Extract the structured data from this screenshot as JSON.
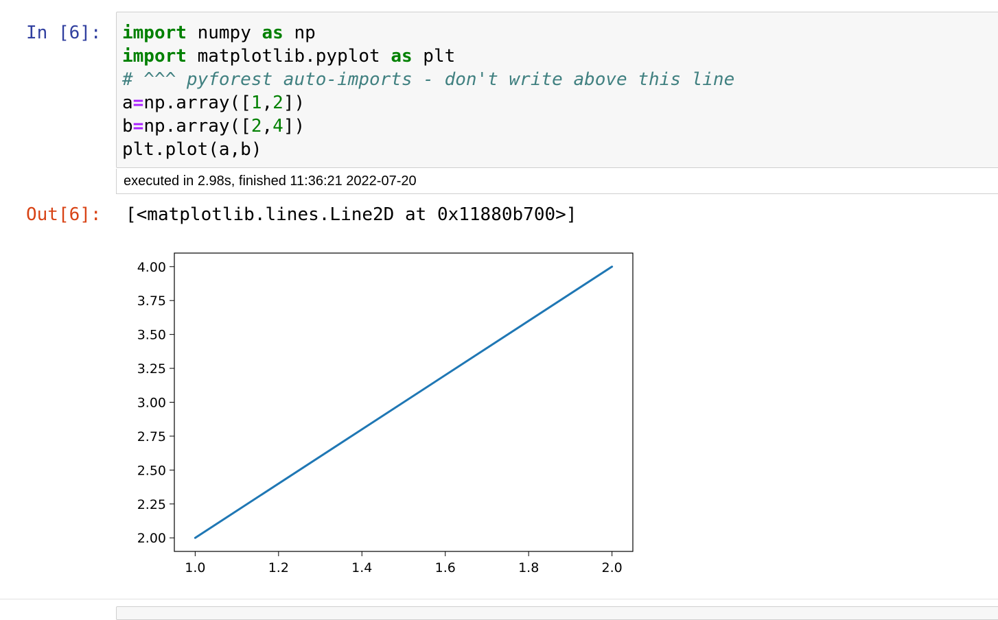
{
  "cell": {
    "in_prompt": "In [6]:",
    "out_prompt": "Out[6]:",
    "code_lines": [
      [
        {
          "t": "import",
          "c": "kw"
        },
        {
          "t": " numpy "
        },
        {
          "t": "as",
          "c": "kw"
        },
        {
          "t": " np"
        }
      ],
      [
        {
          "t": "import",
          "c": "kw"
        },
        {
          "t": " matplotlib.pyplot "
        },
        {
          "t": "as",
          "c": "kw"
        },
        {
          "t": " plt"
        }
      ],
      [
        {
          "t": "# ^^^ pyforest auto-imports - don't write above this line",
          "c": "cm"
        }
      ],
      [
        {
          "t": "a"
        },
        {
          "t": "=",
          "c": "op"
        },
        {
          "t": "np.array(["
        },
        {
          "t": "1",
          "c": "num"
        },
        {
          "t": ","
        },
        {
          "t": "2",
          "c": "num"
        },
        {
          "t": "])"
        }
      ],
      [
        {
          "t": "b"
        },
        {
          "t": "=",
          "c": "op"
        },
        {
          "t": "np.array(["
        },
        {
          "t": "2",
          "c": "num"
        },
        {
          "t": ","
        },
        {
          "t": "4",
          "c": "num"
        },
        {
          "t": "])"
        }
      ],
      [
        {
          "t": "plt.plot(a,b)"
        }
      ]
    ],
    "exec_info": "executed in 2.98s, finished 11:36:21 2022-07-20",
    "output_text": "[<matplotlib.lines.Line2D at 0x11880b700>]"
  },
  "chart_data": {
    "type": "line",
    "x": [
      1,
      2
    ],
    "series": [
      {
        "values": [
          2,
          4
        ],
        "color": "#1f77b4"
      }
    ],
    "xlim": [
      0.95,
      2.05
    ],
    "ylim": [
      1.9,
      4.1
    ],
    "xticks": [
      "1.0",
      "1.2",
      "1.4",
      "1.6",
      "1.8",
      "2.0"
    ],
    "xtick_values": [
      1.0,
      1.2,
      1.4,
      1.6,
      1.8,
      2.0
    ],
    "yticks": [
      "2.00",
      "2.25",
      "2.50",
      "2.75",
      "3.00",
      "3.25",
      "3.50",
      "3.75",
      "4.00"
    ],
    "ytick_values": [
      2.0,
      2.25,
      2.5,
      2.75,
      3.0,
      3.25,
      3.5,
      3.75,
      4.0
    ],
    "grid": false,
    "title": "",
    "xlabel": "",
    "ylabel": ""
  }
}
